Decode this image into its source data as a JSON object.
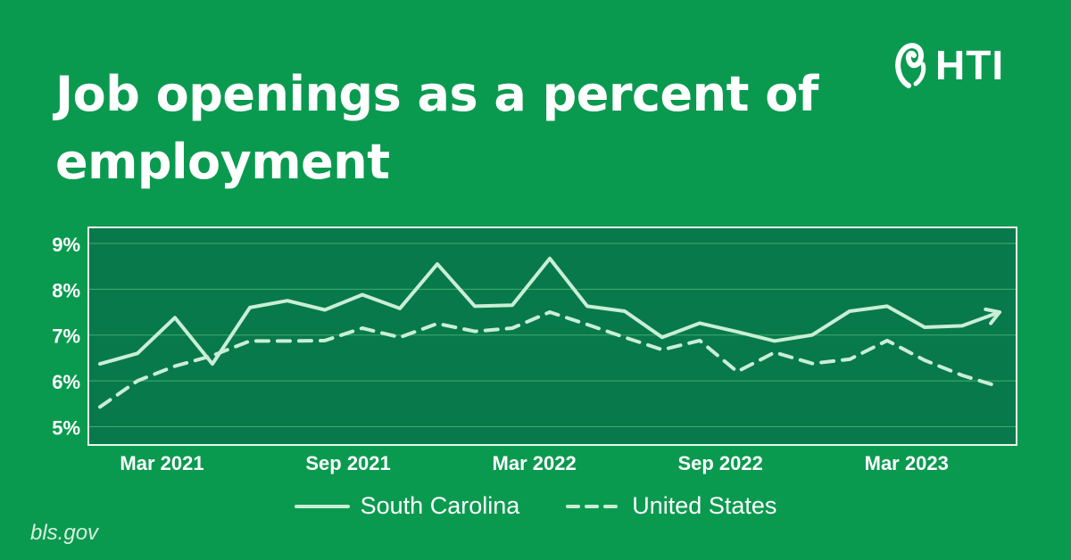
{
  "header": {
    "title": "Job openings as a percent of employment",
    "brand": "HTI",
    "source": "bls.gov"
  },
  "colors": {
    "background": "#0a9a4f",
    "plot_background": "#08794a",
    "line": "#c9eed6",
    "grid": "#3fae73"
  },
  "chart_data": {
    "type": "line",
    "title": "Job openings as a percent of employment",
    "xlabel": "",
    "ylabel": "",
    "ylim": [
      4.6,
      9.35
    ],
    "y_ticks": [
      5,
      6,
      7,
      8,
      9
    ],
    "y_tick_labels": [
      "5%",
      "6%",
      "7%",
      "8%",
      "9%"
    ],
    "x_ticks": [
      "Mar 2021",
      "Sep 2021",
      "Mar 2022",
      "Sep 2022",
      "Mar 2023"
    ],
    "x_tick_index": [
      2,
      8,
      14,
      20,
      26
    ],
    "x_count": 30,
    "grid": true,
    "legend": "bottom",
    "series": [
      {
        "name": "South Carolina",
        "style": "solid",
        "values": [
          6.37,
          6.6,
          7.38,
          6.37,
          7.6,
          7.75,
          7.55,
          7.88,
          7.58,
          8.55,
          7.63,
          7.65,
          8.67,
          7.63,
          7.52,
          6.95,
          7.26,
          7.07,
          6.87,
          7.0,
          7.52,
          7.63,
          7.17,
          7.2,
          7.5
        ]
      },
      {
        "name": "United States",
        "style": "dashed",
        "values": [
          5.43,
          6.0,
          6.32,
          6.55,
          6.87,
          6.87,
          6.88,
          7.15,
          6.95,
          7.25,
          7.08,
          7.15,
          7.5,
          7.23,
          6.95,
          6.68,
          6.88,
          6.2,
          6.62,
          6.38,
          6.47,
          6.88,
          6.45,
          6.12,
          5.87
        ]
      }
    ]
  }
}
